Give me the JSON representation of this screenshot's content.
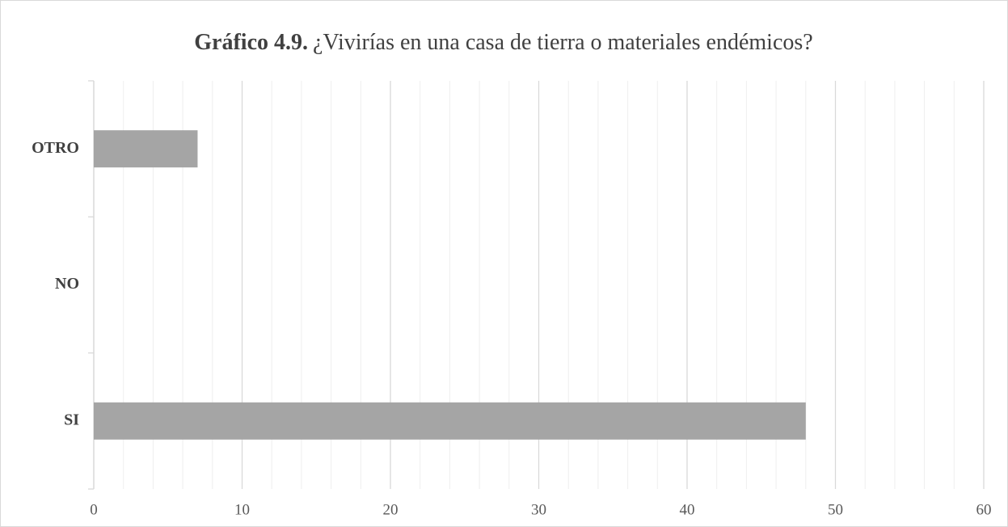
{
  "chart_data": {
    "type": "bar",
    "orientation": "horizontal",
    "title_label": "Gráfico 4.9.",
    "title": "¿Vivirías en una casa de tierra o materiales endémicos?",
    "categories": [
      "SI",
      "NO",
      "OTRO"
    ],
    "values": [
      48,
      0,
      7
    ],
    "color": "#a5a5a5",
    "xlim": [
      0,
      60
    ],
    "xticks": [
      0,
      10,
      20,
      30,
      40,
      50,
      60
    ],
    "xminorticks": [
      2,
      4,
      6,
      8,
      12,
      14,
      16,
      18,
      22,
      24,
      26,
      28,
      32,
      34,
      36,
      38,
      42,
      44,
      46,
      48,
      52,
      54,
      56,
      58
    ],
    "grid": true
  }
}
